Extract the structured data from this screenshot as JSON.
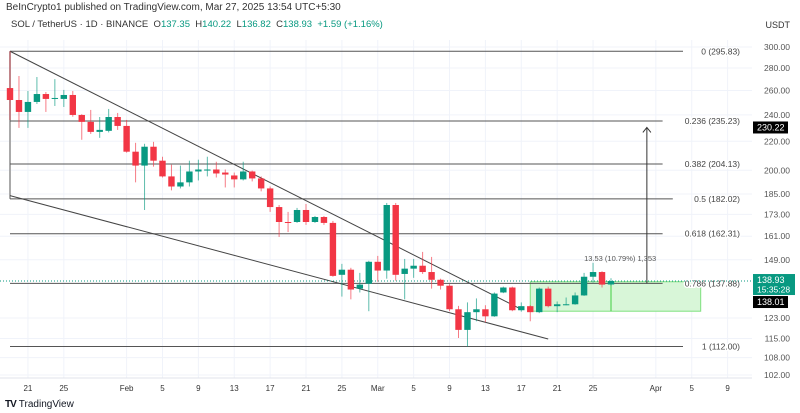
{
  "header": {
    "published": "BeInCrypto1 published on TradingView.com, Mar 27, 2025 13:54 UTC+5:30",
    "symbol": "SOL / TetherUS · 1D · BINANCE",
    "o_label": "O",
    "o_value": "137.35",
    "h_label": "H",
    "h_value": "140.22",
    "l_label": "L",
    "l_value": "136.82",
    "c_label": "C",
    "c_value": "138.93",
    "change": "+1.59 (+1.16%)",
    "currency": "USDT"
  },
  "colors": {
    "up": "#089981",
    "down": "#f23645",
    "zone_fill": "#d8f6d8",
    "zone_border": "#7ee07e",
    "grid": "#f0f3fa"
  },
  "chart_data": {
    "type": "candlestick",
    "y_scale": "log",
    "ylim": [
      102,
      300
    ],
    "grid": true,
    "price_ticks": [
      "300.00",
      "280.00",
      "260.00",
      "240.00",
      "220.00",
      "200.00",
      "185.00",
      "173.00",
      "161.00",
      "149.00",
      "123.00",
      "115.00",
      "108.00",
      "102.00"
    ],
    "time_ticks": [
      {
        "date": "2025-01-21",
        "label": "21"
      },
      {
        "date": "2025-01-25",
        "label": "25"
      },
      {
        "date": "2025-02-01",
        "label": "Feb"
      },
      {
        "date": "2025-02-05",
        "label": "5"
      },
      {
        "date": "2025-02-09",
        "label": "9"
      },
      {
        "date": "2025-02-13",
        "label": "13"
      },
      {
        "date": "2025-02-17",
        "label": "17"
      },
      {
        "date": "2025-02-21",
        "label": "21"
      },
      {
        "date": "2025-02-25",
        "label": "25"
      },
      {
        "date": "2025-03-01",
        "label": "Mar"
      },
      {
        "date": "2025-03-05",
        "label": "5"
      },
      {
        "date": "2025-03-09",
        "label": "9"
      },
      {
        "date": "2025-03-13",
        "label": "13"
      },
      {
        "date": "2025-03-17",
        "label": "17"
      },
      {
        "date": "2025-03-21",
        "label": "21"
      },
      {
        "date": "2025-03-25",
        "label": "25"
      },
      {
        "date": "2025-04-01",
        "label": "Apr"
      },
      {
        "date": "2025-04-05",
        "label": "5"
      },
      {
        "date": "2025-04-09",
        "label": "9"
      }
    ],
    "candles_columns": [
      "date",
      "open",
      "high",
      "low",
      "close"
    ],
    "candles": [
      [
        "2025-01-19",
        262.1,
        295.83,
        236.0,
        252.0
      ],
      [
        "2025-01-20",
        252.0,
        272.7,
        229.9,
        242.3
      ],
      [
        "2025-01-21",
        242.3,
        259.6,
        229.9,
        250.4
      ],
      [
        "2025-01-22",
        250.4,
        271.8,
        248.7,
        257.0
      ],
      [
        "2025-01-23",
        257.0,
        258.7,
        242.3,
        252.9
      ],
      [
        "2025-01-24",
        252.9,
        269.9,
        247.1,
        253.7
      ],
      [
        "2025-01-25",
        252.9,
        260.5,
        246.3,
        256.2
      ],
      [
        "2025-01-26",
        256.2,
        259.6,
        238.5,
        239.9
      ],
      [
        "2025-01-27",
        239.9,
        240.5,
        221.1,
        234.5
      ],
      [
        "2025-01-28",
        234.5,
        243.9,
        225.4,
        226.9
      ],
      [
        "2025-01-29",
        226.9,
        238.3,
        222.5,
        228.4
      ],
      [
        "2025-01-30",
        227.7,
        244.7,
        226.5,
        238.3
      ],
      [
        "2025-01-31",
        238.3,
        241.5,
        228.4,
        231.4
      ],
      [
        "2025-02-01",
        231.4,
        236.0,
        211.9,
        212.6
      ],
      [
        "2025-02-02",
        212.6,
        218.9,
        192.2,
        203.1
      ],
      [
        "2025-02-03",
        203.1,
        218.2,
        175.5,
        216.1
      ],
      [
        "2025-02-04",
        216.1,
        219.6,
        202.4,
        206.4
      ],
      [
        "2025-02-05",
        206.4,
        209.1,
        195.3,
        196.0
      ],
      [
        "2025-02-06",
        196.0,
        203.7,
        187.2,
        189.6
      ],
      [
        "2025-02-07",
        189.6,
        203.1,
        188.4,
        192.2
      ],
      [
        "2025-02-08",
        192.2,
        206.4,
        189.6,
        199.2
      ],
      [
        "2025-02-09",
        199.2,
        207.1,
        193.4,
        200.5
      ],
      [
        "2025-02-10",
        199.8,
        209.1,
        196.0,
        200.5
      ],
      [
        "2025-02-11",
        200.5,
        205.7,
        195.3,
        197.9
      ],
      [
        "2025-02-12",
        198.5,
        200.5,
        189.0,
        197.2
      ],
      [
        "2025-02-13",
        196.6,
        198.5,
        189.0,
        194.1
      ],
      [
        "2025-02-14",
        194.1,
        205.7,
        193.4,
        199.2
      ],
      [
        "2025-02-15",
        199.2,
        199.8,
        192.8,
        194.7
      ],
      [
        "2025-02-16",
        194.7,
        196.0,
        186.6,
        188.4
      ],
      [
        "2025-02-17",
        188.4,
        189.6,
        174.4,
        177.2
      ],
      [
        "2025-02-18",
        177.2,
        178.4,
        160.6,
        168.7
      ],
      [
        "2025-02-19",
        168.7,
        174.4,
        163.2,
        168.2
      ],
      [
        "2025-02-20",
        168.7,
        176.7,
        168.2,
        175.5
      ],
      [
        "2025-02-21",
        175.5,
        179.0,
        167.1,
        168.7
      ],
      [
        "2025-02-22",
        168.7,
        172.1,
        168.2,
        171.5
      ],
      [
        "2025-02-23",
        171.5,
        172.1,
        167.1,
        168.2
      ],
      [
        "2025-02-24",
        168.2,
        169.3,
        140.9,
        141.3
      ],
      [
        "2025-02-25",
        141.8,
        147.0,
        132.0,
        144.2
      ],
      [
        "2025-02-26",
        144.2,
        145.1,
        130.8,
        135.1
      ],
      [
        "2025-02-27",
        135.5,
        142.7,
        133.8,
        137.3
      ],
      [
        "2025-02-28",
        137.7,
        148.5,
        125.8,
        148.0
      ],
      [
        "2025-03-01",
        148.0,
        150.9,
        138.6,
        143.8
      ],
      [
        "2025-03-02",
        143.8,
        179.6,
        140.0,
        178.4
      ],
      [
        "2025-03-03",
        178.4,
        179.6,
        139.1,
        141.8
      ],
      [
        "2025-03-04",
        142.2,
        149.4,
        130.8,
        144.7
      ],
      [
        "2025-03-05",
        144.7,
        149.4,
        140.4,
        146.1
      ],
      [
        "2025-03-06",
        146.1,
        152.9,
        142.2,
        143.1
      ],
      [
        "2025-03-07",
        143.1,
        150.4,
        135.5,
        139.5
      ],
      [
        "2025-03-08",
        139.5,
        140.0,
        135.1,
        136.8
      ],
      [
        "2025-03-09",
        136.8,
        137.5,
        125.8,
        126.6
      ],
      [
        "2025-03-10",
        126.6,
        128.0,
        115.2,
        118.3
      ],
      [
        "2025-03-11",
        118.3,
        129.5,
        112.0,
        125.4
      ],
      [
        "2025-03-12",
        125.4,
        131.2,
        121.7,
        126.6
      ],
      [
        "2025-03-13",
        126.6,
        128.3,
        121.3,
        123.7
      ],
      [
        "2025-03-14",
        123.7,
        133.8,
        123.5,
        133.3
      ],
      [
        "2025-03-15",
        133.8,
        136.4,
        133.5,
        136.0
      ],
      [
        "2025-03-16",
        136.0,
        136.4,
        125.8,
        126.2
      ],
      [
        "2025-03-17",
        126.2,
        129.5,
        125.6,
        127.9
      ],
      [
        "2025-03-18",
        127.9,
        128.3,
        121.7,
        125.4
      ],
      [
        "2025-03-19",
        125.4,
        136.0,
        125.0,
        135.5
      ],
      [
        "2025-03-20",
        135.5,
        136.4,
        127.4,
        127.9
      ],
      [
        "2025-03-21",
        127.9,
        129.9,
        125.4,
        128.7
      ],
      [
        "2025-03-22",
        128.5,
        131.6,
        128.3,
        128.7
      ],
      [
        "2025-03-23",
        128.7,
        133.8,
        128.5,
        132.5
      ],
      [
        "2025-03-24",
        132.5,
        142.7,
        132.3,
        140.9
      ],
      [
        "2025-03-25",
        140.9,
        147.5,
        138.2,
        143.1
      ],
      [
        "2025-03-26",
        143.1,
        143.5,
        136.0,
        137.3
      ],
      [
        "2025-03-27",
        137.35,
        140.22,
        136.82,
        138.93
      ]
    ],
    "fib_levels": [
      {
        "level": 0,
        "price": 295.83,
        "label": "0 (295.83)"
      },
      {
        "level": 0.236,
        "price": 235.23,
        "label": "0.236 (235.23)"
      },
      {
        "level": 0.382,
        "price": 204.13,
        "label": "0.382 (204.13)"
      },
      {
        "level": 0.5,
        "price": 182.02,
        "label": "0.5 (182.02)"
      },
      {
        "level": 0.618,
        "price": 162.31,
        "label": "0.618 (162.31)"
      },
      {
        "level": 0.786,
        "price": 137.88,
        "label": "0.786 (137.88)"
      },
      {
        "level": 1,
        "price": 112.0,
        "label": "1 (112.00)"
      }
    ],
    "trendlines": [
      {
        "name": "upper",
        "from": [
          "2025-01-19",
          295.83
        ],
        "to": [
          "2025-03-17",
          126.6
        ]
      },
      {
        "name": "lower",
        "from": [
          "2025-01-19",
          184.0
        ],
        "to": [
          "2025-03-20",
          114.8
        ]
      }
    ],
    "zone": {
      "from_date": "2025-03-18",
      "to_date": "2025-04-06",
      "top": 138.6,
      "bottom": 125.8,
      "marker_date": "2025-03-27"
    },
    "target_arrow": {
      "date": "2025-03-31",
      "from": 137.88,
      "to": 230.22
    },
    "annotation": "13.53 (10.79%) 1,353",
    "annotation_anchor": [
      "2025-03-24",
      148.5
    ],
    "last_price": {
      "value": "138.93",
      "countdown": "15:35:28",
      "price": 138.93
    },
    "marker_labels": [
      {
        "value": "230.22",
        "price": 230.22
      },
      {
        "value": "138.01",
        "price": 135.7
      }
    ]
  },
  "footer": {
    "logo_text": "TV",
    "brand": "TradingView"
  }
}
